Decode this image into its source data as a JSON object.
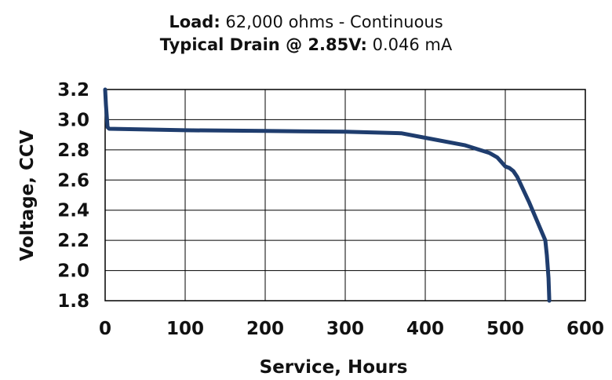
{
  "chart_data": {
    "type": "line",
    "title_line1": {
      "label": "Load:",
      "value": "62,000 ohms - Continuous"
    },
    "title_line2": {
      "label": "Typical Drain @ 2.85V:",
      "value": "0.046 mA"
    },
    "xlabel": "Service, Hours",
    "ylabel": "Voltage, CCV",
    "xlim": [
      0,
      600
    ],
    "ylim": [
      1.8,
      3.2
    ],
    "x_ticks": [
      "0",
      "100",
      "200",
      "300",
      "400",
      "500",
      "600"
    ],
    "y_ticks": [
      "3.2",
      "3.0",
      "2.8",
      "2.6",
      "2.4",
      "2.2",
      "2.0",
      "1.8"
    ],
    "grid": true,
    "line_color": "#1f3d6e",
    "series": [
      {
        "x": [
          0,
          1,
          3,
          5,
          50,
          100,
          200,
          300,
          370,
          400,
          450,
          480,
          490,
          495,
          500,
          505,
          510,
          515,
          530,
          550,
          552,
          554,
          555
        ],
        "y": [
          3.2,
          3.1,
          2.95,
          2.94,
          2.935,
          2.93,
          2.925,
          2.92,
          2.91,
          2.88,
          2.83,
          2.78,
          2.75,
          2.72,
          2.69,
          2.68,
          2.66,
          2.62,
          2.45,
          2.2,
          2.1,
          1.95,
          1.8
        ]
      }
    ]
  }
}
